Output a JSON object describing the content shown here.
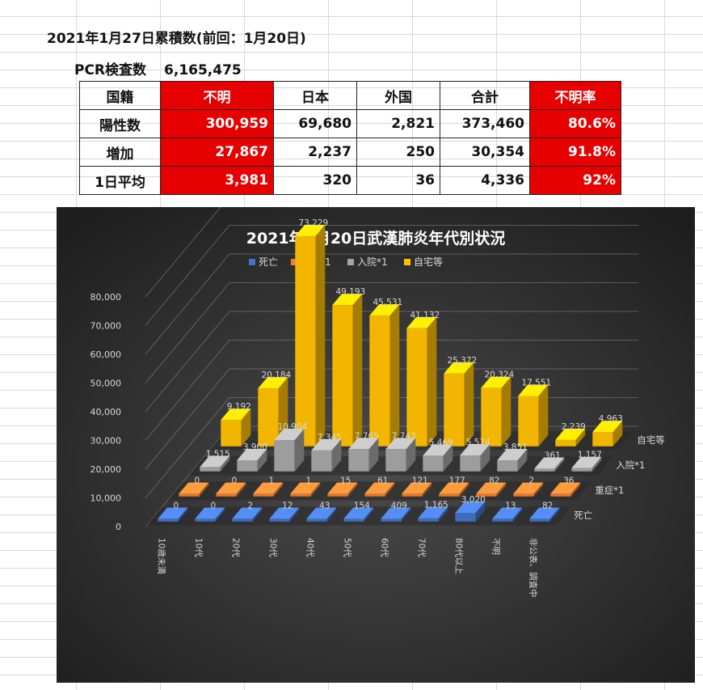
{
  "sheet_title": "2021年1月27日累積数(前回：1月20日)",
  "pcr": {
    "label": "PCR検査数",
    "value": "6,165,475"
  },
  "table": {
    "header": [
      "国籍",
      "不明",
      "日本",
      "外国",
      "合計",
      "不明率"
    ],
    "rows": [
      [
        "陽性数",
        "300,959",
        "69,680",
        "2,821",
        "373,460",
        "80.6%"
      ],
      [
        "増加",
        "27,867",
        "2,237",
        "250",
        "30,354",
        "91.8%"
      ],
      [
        "1日平均",
        "3,981",
        "320",
        "36",
        "4,336",
        "92%"
      ]
    ],
    "highlight_color": "#e60000"
  },
  "chart_data": {
    "type": "bar",
    "title": "2021年1月20日武漢肺炎年代別状況",
    "categories": [
      "10歳未満",
      "10代",
      "20代",
      "30代",
      "40代",
      "50代",
      "60代",
      "70代",
      "80代以上",
      "不明",
      "非公表、調査中"
    ],
    "series": [
      {
        "name": "死亡",
        "color": "#4472c4",
        "values": [
          0,
          0,
          2,
          12,
          43,
          154,
          409,
          1165,
          3020,
          13,
          82
        ]
      },
      {
        "name": "重症*1",
        "color": "#ed7d31",
        "values": [
          0,
          0,
          1,
          1,
          15,
          61,
          121,
          177,
          82,
          2,
          36
        ]
      },
      {
        "name": "入院*1",
        "color": "#a5a5a5",
        "values": [
          1515,
          3900,
          10904,
          7345,
          7765,
          7743,
          5469,
          5574,
          3851,
          361,
          1157
        ]
      },
      {
        "name": "自宅等",
        "color": "#ffc000",
        "values": [
          9192,
          20184,
          73229,
          49193,
          45531,
          41132,
          25372,
          20324,
          17551,
          2239,
          4963
        ]
      }
    ],
    "value_labels": [
      [
        "0",
        "0",
        "2",
        "12",
        "43",
        "154",
        "409",
        "1,165",
        "3,020",
        "13",
        "82"
      ],
      [
        "0",
        "0",
        "1",
        "1",
        "15",
        "61",
        "121",
        "177",
        "82",
        "2",
        "36"
      ],
      [
        "1,515",
        "3,900",
        "10,904",
        "7,345",
        "7,765",
        "7,743",
        "5,469",
        "5,574",
        "3,851",
        "361",
        "1,157"
      ],
      [
        "9,192",
        "20,184",
        "73,229",
        "49,193",
        "45,531",
        "41,132",
        "25,372",
        "20,324",
        "17,551",
        "2,239",
        "4,963"
      ]
    ],
    "ylim": [
      0,
      80000
    ],
    "yticks": [
      "0",
      "10,000",
      "20,000",
      "30,000",
      "40,000",
      "50,000",
      "60,000",
      "70,000",
      "80,000"
    ],
    "legend_position": "top",
    "grid": true,
    "background": "#3a3a3a"
  }
}
